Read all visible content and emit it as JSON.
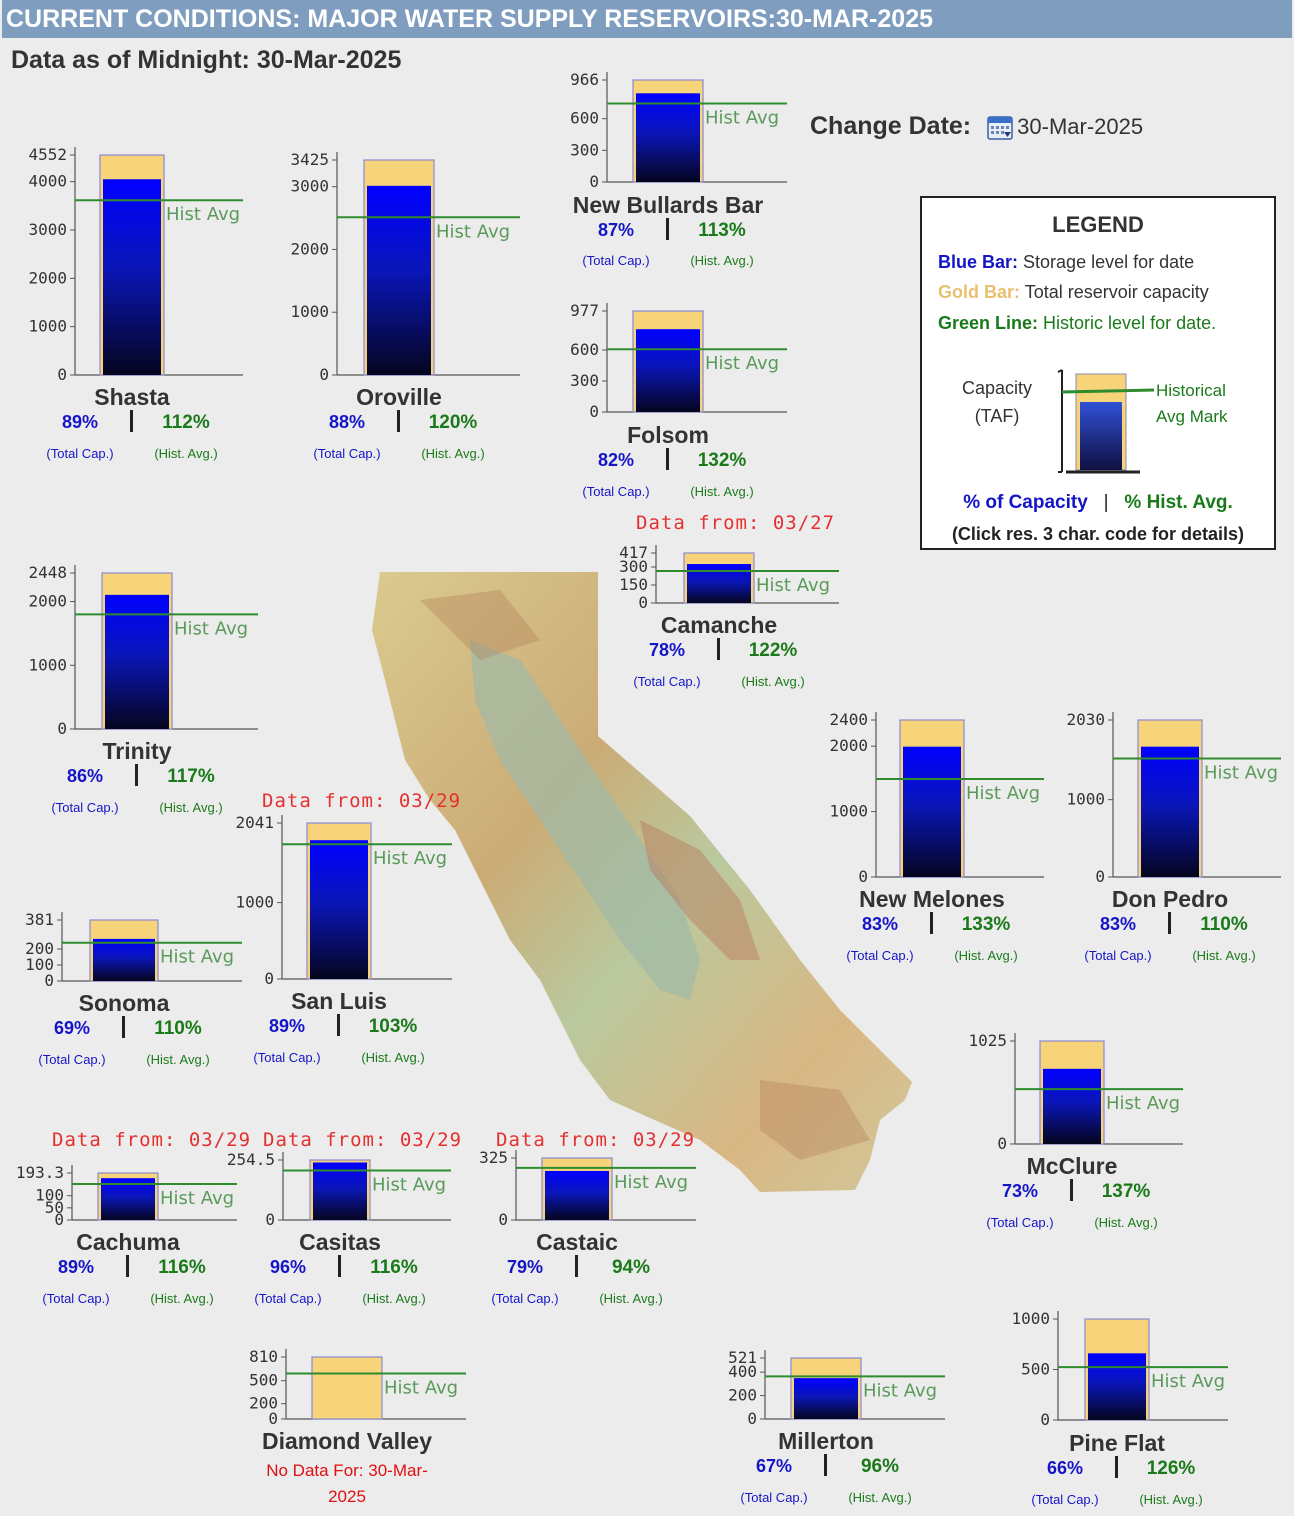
{
  "header": {
    "title": "CURRENT CONDITIONS: MAJOR WATER SUPPLY RESERVOIRS:30-MAR-2025"
  },
  "subtitle": "Data as of Midnight: 30-Mar-2025",
  "change_date": {
    "label": "Change Date:",
    "value": "30-Mar-2025",
    "icon": "calendar-icon"
  },
  "common": {
    "hist_label": "Hist Avg",
    "cap_caption": "(Total Cap.)",
    "hist_caption": "(Hist. Avg.)"
  },
  "legend": {
    "title": "LEGEND",
    "blue_key": "Blue Bar:",
    "blue_text": "Storage level for date",
    "gold_key": "Gold Bar:",
    "gold_text": "Total reservoir capacity",
    "green_key": "Green Line:",
    "green_text": "Historic level for date.",
    "capacity_line1": "Capacity",
    "capacity_line2": "(TAF)",
    "hist_line1": "Historical",
    "hist_line2": "Avg Mark",
    "pct_capacity": "% of Capacity",
    "divider": "|",
    "pct_hist": "% Hist. Avg.",
    "footer": "(Click res. 3 char. code for details)"
  },
  "colors": {
    "header_bg": "#7f9dbf",
    "storage_bar": "#0000ff",
    "capacity_bar": "#f7d37a",
    "hist_line": "#2e8b2e",
    "warning": "#e53030"
  },
  "chart_data": [
    {
      "type": "bar",
      "name": "Shasta",
      "capacity": 4552,
      "storage": 4050,
      "hist_avg": 3616,
      "yticks": [
        0,
        1000,
        2000,
        3000,
        4000,
        4552
      ],
      "pct_capacity": "89%",
      "pct_hist": "112%"
    },
    {
      "type": "bar",
      "name": "Oroville",
      "capacity": 3425,
      "storage": 3014,
      "hist_avg": 2512,
      "yticks": [
        0,
        1000,
        2000,
        3000,
        3425
      ],
      "pct_capacity": "88%",
      "pct_hist": "120%"
    },
    {
      "type": "bar",
      "name": "New Bullards Bar",
      "capacity": 966,
      "storage": 840,
      "hist_avg": 743,
      "yticks": [
        0,
        300,
        600,
        966
      ],
      "pct_capacity": "87%",
      "pct_hist": "113%"
    },
    {
      "type": "bar",
      "name": "Folsom",
      "capacity": 977,
      "storage": 801,
      "hist_avg": 607,
      "yticks": [
        0,
        300,
        600,
        977
      ],
      "pct_capacity": "82%",
      "pct_hist": "132%"
    },
    {
      "type": "bar",
      "name": "Trinity",
      "capacity": 2448,
      "storage": 2105,
      "hist_avg": 1799,
      "yticks": [
        0,
        1000,
        2000,
        2448
      ],
      "pct_capacity": "86%",
      "pct_hist": "117%"
    },
    {
      "type": "bar",
      "name": "Camanche",
      "capacity": 417,
      "storage": 325,
      "hist_avg": 267,
      "yticks": [
        0,
        150,
        300,
        417
      ],
      "pct_capacity": "78%",
      "pct_hist": "122%",
      "note": "Data from: 03/27"
    },
    {
      "type": "bar",
      "name": "New Melones",
      "capacity": 2400,
      "storage": 1992,
      "hist_avg": 1498,
      "yticks": [
        0,
        1000,
        2000,
        2400
      ],
      "pct_capacity": "83%",
      "pct_hist": "133%"
    },
    {
      "type": "bar",
      "name": "Don Pedro",
      "capacity": 2030,
      "storage": 1685,
      "hist_avg": 1532,
      "yticks": [
        0,
        1000,
        2030
      ],
      "pct_capacity": "83%",
      "pct_hist": "110%"
    },
    {
      "type": "bar",
      "name": "Sonoma",
      "capacity": 381,
      "storage": 263,
      "hist_avg": 239,
      "yticks": [
        0,
        100,
        200,
        381
      ],
      "pct_capacity": "69%",
      "pct_hist": "110%"
    },
    {
      "type": "bar",
      "name": "San Luis",
      "capacity": 2041,
      "storage": 1816,
      "hist_avg": 1763,
      "yticks": [
        0,
        1000,
        2041
      ],
      "pct_capacity": "89%",
      "pct_hist": "103%",
      "note": "Data from: 03/29"
    },
    {
      "type": "bar",
      "name": "McClure",
      "capacity": 1025,
      "storage": 748,
      "hist_avg": 546,
      "yticks": [
        0,
        1025
      ],
      "pct_capacity": "73%",
      "pct_hist": "137%"
    },
    {
      "type": "bar",
      "name": "Cachuma",
      "capacity": 193.3,
      "storage": 172,
      "hist_avg": 148,
      "yticks": [
        0,
        50,
        100,
        193.3
      ],
      "pct_capacity": "89%",
      "pct_hist": "116%",
      "note": "Data from: 03/29"
    },
    {
      "type": "bar",
      "name": "Casitas",
      "capacity": 254.5,
      "storage": 244,
      "hist_avg": 210,
      "yticks": [
        0,
        254.5
      ],
      "pct_capacity": "96%",
      "pct_hist": "116%",
      "note": "Data from: 03/29"
    },
    {
      "type": "bar",
      "name": "Castaic",
      "capacity": 325,
      "storage": 257,
      "hist_avg": 273,
      "yticks": [
        0,
        325
      ],
      "pct_capacity": "79%",
      "pct_hist": "94%",
      "note": "Data from: 03/29"
    },
    {
      "type": "bar",
      "name": "Diamond Valley",
      "capacity": 810,
      "storage": null,
      "hist_avg": 595,
      "yticks": [
        0,
        200,
        500,
        810
      ],
      "no_data": "No Data For: 30-Mar-2025"
    },
    {
      "type": "bar",
      "name": "Millerton",
      "capacity": 521,
      "storage": 349,
      "hist_avg": 364,
      "yticks": [
        0,
        200,
        400,
        521
      ],
      "pct_capacity": "67%",
      "pct_hist": "96%"
    },
    {
      "type": "bar",
      "name": "Pine Flat",
      "capacity": 1000,
      "storage": 660,
      "hist_avg": 524,
      "yticks": [
        0,
        500,
        1000
      ],
      "pct_capacity": "66%",
      "pct_hist": "126%"
    }
  ]
}
